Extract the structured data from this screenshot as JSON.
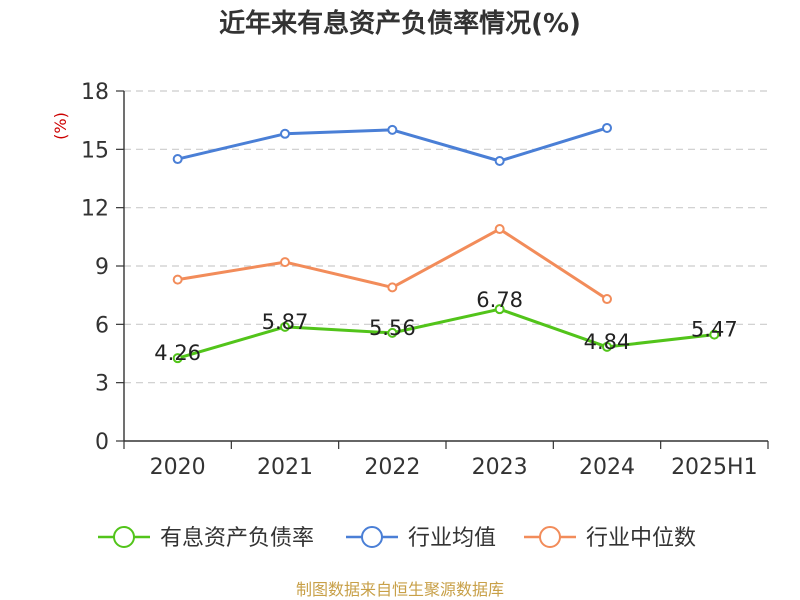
{
  "chart_data": {
    "type": "line",
    "title": "近年来有息资产负债率情况(%)",
    "ylabel": "(%)",
    "xlabel": "",
    "categories": [
      "2020",
      "2021",
      "2022",
      "2023",
      "2024",
      "2025H1"
    ],
    "ylim": [
      0,
      18
    ],
    "yticks": [
      0,
      3,
      6,
      9,
      12,
      15,
      18
    ],
    "grid": true,
    "legend_position": "bottom",
    "series": [
      {
        "name": "有息资产负债率",
        "color": "#52c41a",
        "values": [
          4.26,
          5.87,
          5.56,
          6.78,
          4.84,
          5.47
        ],
        "labels": [
          "4.26",
          "5.87",
          "5.56",
          "6.78",
          "4.84",
          "5.47"
        ]
      },
      {
        "name": "行业均值",
        "color": "#4a7fd6",
        "values": [
          14.5,
          15.8,
          16.0,
          14.4,
          16.1,
          null
        ]
      },
      {
        "name": "行业中位数",
        "color": "#f28c5a",
        "values": [
          8.3,
          9.2,
          7.9,
          10.9,
          7.3,
          null
        ]
      }
    ]
  },
  "source": "制图数据来自恒生聚源数据库"
}
